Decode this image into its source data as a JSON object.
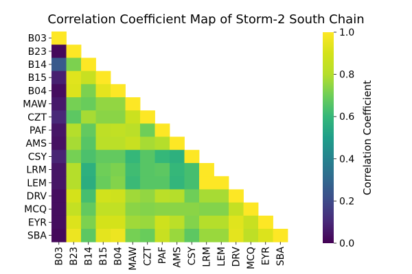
{
  "chart_data": {
    "type": "heatmap",
    "title": "Correlation Coefficient Map of Storm-2 South Chain",
    "labels": [
      "B03",
      "B23",
      "B14",
      "B15",
      "B04",
      "MAW",
      "CZT",
      "PAF",
      "AMS",
      "CSY",
      "LRM",
      "LEM",
      "DRV",
      "MCQ",
      "EYR",
      "SBA"
    ],
    "matrix": [
      [
        1.0
      ],
      [
        0.02,
        1.0
      ],
      [
        0.25,
        0.72,
        1.0
      ],
      [
        0.08,
        0.93,
        0.86,
        1.0
      ],
      [
        0.03,
        0.92,
        0.72,
        0.94,
        1.0
      ],
      [
        0.06,
        0.71,
        0.69,
        0.75,
        0.75,
        1.0
      ],
      [
        0.1,
        0.67,
        0.78,
        0.74,
        0.74,
        0.87,
        1.0
      ],
      [
        0.05,
        0.8,
        0.68,
        0.83,
        0.84,
        0.82,
        0.7,
        1.0
      ],
      [
        0.04,
        0.78,
        0.66,
        0.82,
        0.82,
        0.86,
        0.78,
        0.8,
        1.0
      ],
      [
        0.09,
        0.71,
        0.64,
        0.68,
        0.68,
        0.6,
        0.66,
        0.6,
        0.57,
        1.0
      ],
      [
        0.05,
        0.8,
        0.57,
        0.7,
        0.72,
        0.62,
        0.66,
        0.67,
        0.6,
        0.63,
        1.0
      ],
      [
        0.05,
        0.8,
        0.56,
        0.69,
        0.73,
        0.61,
        0.66,
        0.66,
        0.59,
        0.63,
        1.0,
        1.0
      ],
      [
        0.03,
        0.9,
        0.63,
        0.89,
        0.88,
        0.77,
        0.75,
        0.82,
        0.8,
        0.7,
        0.78,
        0.78,
        1.0
      ],
      [
        0.03,
        0.85,
        0.68,
        0.84,
        0.84,
        0.74,
        0.73,
        0.74,
        0.74,
        0.74,
        0.73,
        0.73,
        0.85,
        1.0
      ],
      [
        0.03,
        0.92,
        0.72,
        0.9,
        0.9,
        0.77,
        0.76,
        0.88,
        0.82,
        0.73,
        0.8,
        0.8,
        0.93,
        0.86,
        1.0
      ],
      [
        0.02,
        0.96,
        0.67,
        0.94,
        0.96,
        0.71,
        0.69,
        0.86,
        0.76,
        0.67,
        0.76,
        0.76,
        0.94,
        0.83,
        0.92,
        1.0
      ]
    ],
    "colorbar": {
      "label": "Correlation Coefficient",
      "range": [
        0.0,
        1.0
      ],
      "ticks": [
        "0.0",
        "0.2",
        "0.4",
        "0.6",
        "0.8",
        "1.0"
      ]
    },
    "colormap": "viridis",
    "mask": "upper-triangle"
  }
}
